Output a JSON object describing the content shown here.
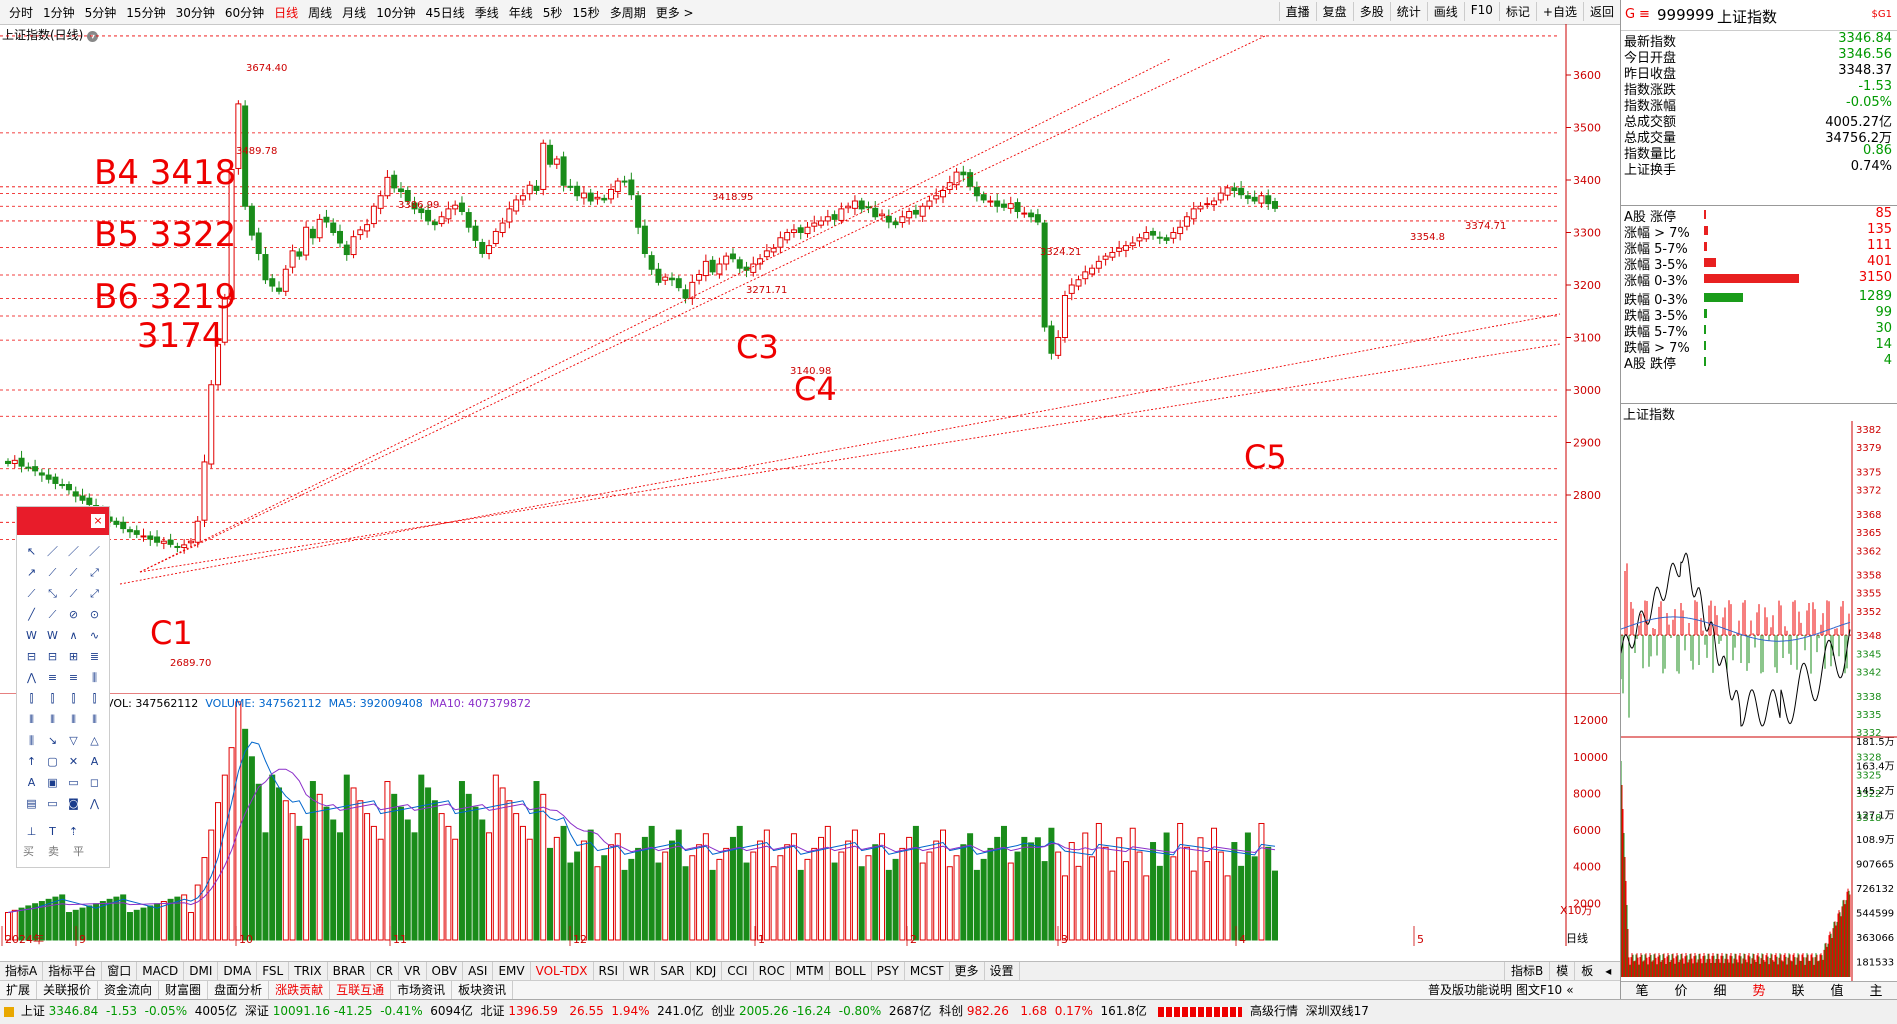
{
  "period_tabs": [
    "分时",
    "1分钟",
    "5分钟",
    "15分钟",
    "30分钟",
    "60分钟",
    "日线",
    "周线",
    "月线",
    "10分钟",
    "45日线",
    "季线",
    "年线",
    "5秒",
    "15秒",
    "多周期",
    "更多 >"
  ],
  "period_active": 6,
  "right_tools": [
    "直播",
    "复盘",
    "多股",
    "统计",
    "画线",
    "F10",
    "标记",
    "+自选",
    "返回"
  ],
  "chart_title": "上证指数(日线)",
  "annotations": {
    "high_label": "3674.40",
    "p3489": "3489.78",
    "p3386": "3386.99",
    "p3418": "3418.95",
    "p3271": "3271.71",
    "p3140": "3140.98",
    "p3324": "3324.21",
    "p3354": "3354.8",
    "p3374": "3374.71",
    "low_label": "2689.70",
    "B4": "B4 3418",
    "B5": "B5 3322",
    "B6": "B6 3219",
    "L3174": "3174",
    "C1": "C1",
    "C3": "C3",
    "C4": "C4",
    "C5": "C5"
  },
  "price_axis": [
    "3600",
    "3500",
    "3400",
    "3300",
    "3200",
    "3100",
    "3000",
    "2900",
    "2800"
  ],
  "vol_axis": [
    "12000",
    "10000",
    "8000",
    "6000",
    "4000",
    "2000"
  ],
  "vol_unit": "X10万",
  "vol_legend": {
    "vol": "VOL: 347562112",
    "volume": "VOLUME: 347562112",
    "ma5": "MA5: 392009408",
    "ma10": "MA10: 407379872"
  },
  "date_labels": [
    "2024年",
    "9",
    "10",
    "11",
    "12",
    "1",
    "2",
    "3",
    "4",
    "5"
  ],
  "axis_mode": "日线",
  "indicator_tabs": [
    "指标A",
    "指标平台",
    "窗口",
    "MACD",
    "DMI",
    "DMA",
    "FSL",
    "TRIX",
    "BRAR",
    "CR",
    "VR",
    "OBV",
    "ASI",
    "EMV",
    "VOL-TDX",
    "RSI",
    "WR",
    "SAR",
    "KDJ",
    "CCI",
    "ROC",
    "MTM",
    "BOLL",
    "PSY",
    "MCST",
    "更多",
    "设置"
  ],
  "indicator_right": [
    "指标B",
    "模",
    "板"
  ],
  "function_tabs": [
    "扩展",
    "关联报价",
    "资金流向",
    "财富圈",
    "盘面分析",
    "涨跌贡献",
    "互联互通",
    "市场资讯",
    "板块资讯"
  ],
  "function_right": "普及版功能说明",
  "function_right2": "图文F10",
  "quote": {
    "code": "999999",
    "name": "上证指数",
    "badge": "$G1",
    "rows": [
      {
        "label": "最新指数",
        "value": "3346.84",
        "color": "green"
      },
      {
        "label": "今日开盘",
        "value": "3346.56",
        "color": "green"
      },
      {
        "label": "昨日收盘",
        "value": "3348.37",
        "color": "black"
      },
      {
        "label": "指数涨跌",
        "value": "-1.53",
        "color": "green"
      },
      {
        "label": "指数涨幅",
        "value": "-0.05%",
        "color": "green"
      },
      {
        "label": "总成交额",
        "value": "4005.27亿",
        "color": "black"
      },
      {
        "label": "总成交量",
        "value": "34756.2万",
        "color": "black"
      },
      {
        "label": "指数量比",
        "value": "0.86",
        "color": "green"
      },
      {
        "label": "上证换手",
        "value": "0.74%",
        "color": "black"
      }
    ],
    "breadth": [
      {
        "label": "A股 涨停",
        "value": "85",
        "color": "red",
        "level": 0.02
      },
      {
        "label": "涨幅 > 7%",
        "value": "135",
        "color": "red",
        "level": 0.04
      },
      {
        "label": "涨幅 5-7%",
        "value": "111",
        "color": "red",
        "level": 0.03
      },
      {
        "label": "涨幅 3-5%",
        "value": "401",
        "color": "red",
        "level": 0.13
      },
      {
        "label": "涨幅 0-3%",
        "value": "3150",
        "color": "red",
        "level": 1.0
      },
      {
        "label": "跌幅 0-3%",
        "value": "1289",
        "color": "green",
        "level": 0.41
      },
      {
        "label": "跌幅 3-5%",
        "value": "99",
        "color": "green",
        "level": 0.03
      },
      {
        "label": "跌幅 5-7%",
        "value": "30",
        "color": "green",
        "level": 0.01
      },
      {
        "label": "跌幅 > 7%",
        "value": "14",
        "color": "green",
        "level": 0.005
      },
      {
        "label": "A股 跌停",
        "value": "4",
        "color": "green",
        "level": 0.002
      }
    ],
    "mini_title": "上证指数",
    "mini_axis": [
      "3382",
      "3379",
      "3375",
      "3372",
      "3368",
      "3365",
      "3362",
      "3358",
      "3355",
      "3352",
      "3348",
      "3345",
      "3342",
      "3338",
      "3335",
      "3332",
      "3328",
      "3325",
      "3322",
      "3318"
    ],
    "mini_vol_axis": [
      "181.5万",
      "163.4万",
      "145.2万",
      "127.1万",
      "108.9万",
      "907665",
      "726132",
      "544599",
      "363066",
      "181533"
    ],
    "mini_tabs": [
      "笔",
      "价",
      "细",
      "势",
      "联",
      "值",
      "主"
    ],
    "mini_active": 3
  },
  "status": {
    "sh_name": "上证",
    "sh_price": "3346.84",
    "sh_chg": "-1.53",
    "sh_pct": "-0.05%",
    "sh_amt": "4005亿",
    "sz_name": "深证",
    "sz_price": "10091.16",
    "sz_chg": "-41.25",
    "sz_pct": "-0.41%",
    "sz_amt": "6094亿",
    "bz_name": "北证",
    "bz_price": "1396.59",
    "bz_chg": "26.55",
    "bz_pct": "1.94%",
    "bz_amt": "241.0亿",
    "cy_name": "创业",
    "cy_price": "2005.26",
    "cy_chg": "-16.24",
    "cy_pct": "-0.80%",
    "cy_amt": "2687亿",
    "kc_name": "科创",
    "kc_price": "982.26",
    "kc_chg": "1.68",
    "kc_pct": "0.17%",
    "kc_amt": "161.8亿",
    "right1": "高级行情",
    "right2": "深圳双线17"
  },
  "toolbox_trade": [
    "买",
    "卖",
    "平"
  ],
  "colors": {
    "up": "#e00000",
    "down": "#1a8c1a",
    "ma5": "#0066cc",
    "ma10": "#8b2fc9",
    "dash": "#e00000"
  }
}
